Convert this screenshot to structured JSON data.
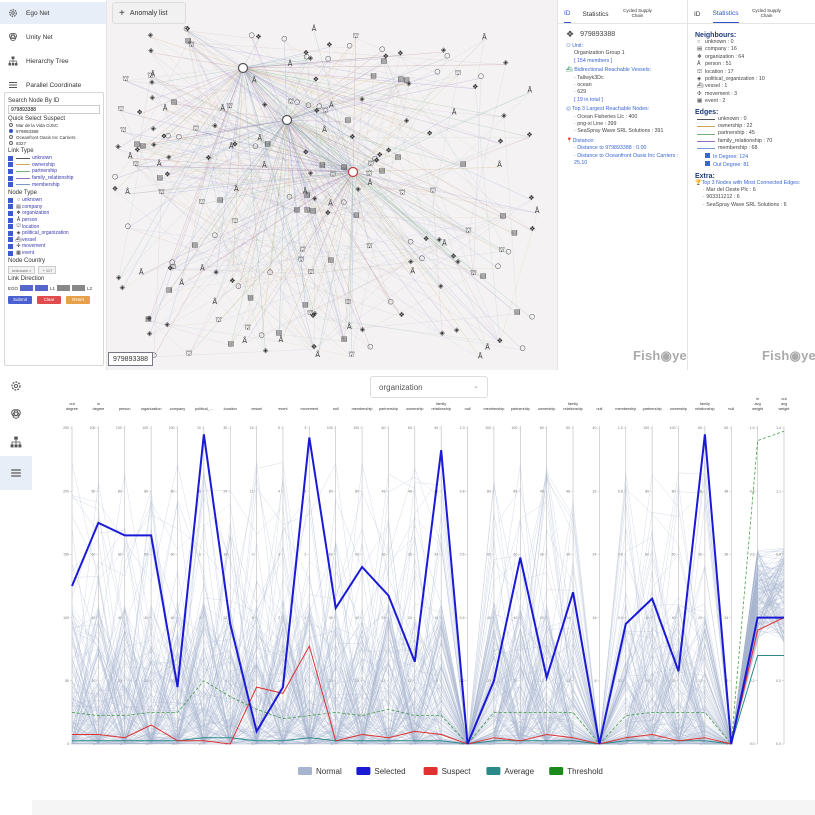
{
  "nav": {
    "items": [
      {
        "label": "Ego Net"
      },
      {
        "label": "Unity Net"
      },
      {
        "label": "Hierarchy Tree"
      },
      {
        "label": "Parallel Coordinate"
      }
    ]
  },
  "search": {
    "title": "Search Node By ID",
    "value": "979893388"
  },
  "suspect": {
    "title": "Quick Select Suspect",
    "options": [
      "Mar de la Vida OJSC",
      "979893388",
      "Oceanfront Oasis Inc Carriers",
      "8327"
    ]
  },
  "link_type": {
    "title": "Link Type",
    "items": [
      "unknown",
      "ownership",
      "partnership",
      "family_relationship",
      "membership"
    ],
    "colors": [
      "#555555",
      "#c9a45a",
      "#7bb07b",
      "#9b6fbf",
      "#7a9acf"
    ]
  },
  "node_type": {
    "title": "Node Type",
    "items": [
      {
        "glyph": "○",
        "label": "unknown"
      },
      {
        "glyph": "▤",
        "label": "company"
      },
      {
        "glyph": "❖",
        "label": "organization"
      },
      {
        "glyph": "Å",
        "label": "person"
      },
      {
        "glyph": "⛫",
        "label": "location"
      },
      {
        "glyph": "◈",
        "label": "political_organization"
      },
      {
        "glyph": "⛴",
        "label": "vessel"
      },
      {
        "glyph": "✣",
        "label": "movement"
      },
      {
        "glyph": "▦",
        "label": "event"
      }
    ]
  },
  "node_country": {
    "title": "Node Country",
    "chips": [
      "unknown ×",
      "+ 117"
    ]
  },
  "link_direction": {
    "title": "Link Direction",
    "ego": "EGO",
    "l1": "L1",
    "l2": "L2"
  },
  "buttons": {
    "submit": "Submit",
    "clear": "Clear",
    "reset": "Reset"
  },
  "graph": {
    "anomaly_label": "Anomaly list",
    "node_badge": "979893388"
  },
  "info": {
    "tabs": [
      "ID",
      "Statistics",
      "Cycled Supply Chain"
    ],
    "id": "979893388",
    "unit_label": "Unit:",
    "unit": "Organization Group 1",
    "members": "[ 154 members ]",
    "vessels_title": "Bidirectional Reachable Vessels:",
    "vessels": [
      "Tallwyk3Dc",
      "ocean",
      "629"
    ],
    "vessels_total": "[ 19 in total ]",
    "top3_title": "Top 3 Largest Reachable Nodes:",
    "top3": [
      "Ocean Fisheries Llc : 400",
      "png-xi Line : 399",
      "SeaSpray Wave SRL Solutions : 391"
    ],
    "distance_title": "Distance:",
    "distances": [
      "Distance to 979893388 : 0.00",
      "Distance to Oceanfront Oasis Inc Carriers : 25.10"
    ],
    "logo": "Fish◉ye"
  },
  "stats": {
    "tabs": [
      "ID",
      "Statistics",
      "Cycled Supply Chain"
    ],
    "neighbours_title": "Neighbours:",
    "neighbours": [
      {
        "glyph": "○",
        "label": "unknown : 0"
      },
      {
        "glyph": "▤",
        "label": "company : 16"
      },
      {
        "glyph": "❖",
        "label": "organization : 64"
      },
      {
        "glyph": "Å",
        "label": "person : 51"
      },
      {
        "glyph": "⛫",
        "label": "location : 17"
      },
      {
        "glyph": "◈",
        "label": "political_organization : 10"
      },
      {
        "glyph": "⛴",
        "label": "vessel : 1"
      },
      {
        "glyph": "✣",
        "label": "movement : 3"
      },
      {
        "glyph": "▦",
        "label": "event : 2"
      }
    ],
    "edges_title": "Edges:",
    "edges": [
      {
        "label": "unknown : 0",
        "color": "#555555"
      },
      {
        "label": "ownership : 22",
        "color": "#c9a45a"
      },
      {
        "label": "partnership : 45",
        "color": "#7bb07b"
      },
      {
        "label": "family_relationship : 70",
        "color": "#9b6fbf"
      },
      {
        "label": "membership : 68",
        "color": "#7a9acf"
      }
    ],
    "in_degree": "In Degree: 124",
    "out_degree": "Out Degree: 81",
    "extra_title": "Extra:",
    "extra_sub": "Top 3 Nodes with Most Connected Edges:",
    "extra_items": [
      "Mar del Oeste Plc : 6",
      "903311212 : 6",
      "SeaSpray Wave SRL Solutions : 6"
    ],
    "logo": "Fish◉ye"
  },
  "parallel": {
    "dropdown": "organization",
    "axes": [
      "out degree",
      "in degree",
      "person",
      "organization",
      "company",
      "political_...",
      "location",
      "vessel",
      "event",
      "movement",
      "null",
      "membership",
      "partnership",
      "ownership",
      "family relationship",
      "null",
      "membership",
      "partnership",
      "ownership",
      "family relationship",
      "null",
      "membership",
      "partnership",
      "ownership",
      "family relationship",
      "null",
      "in avg weight",
      "out avg weight"
    ],
    "legend": [
      {
        "label": "Normal",
        "color": "#a6b4cf"
      },
      {
        "label": "Selected",
        "color": "#1a1ad6"
      },
      {
        "label": "Suspect",
        "color": "#e03030"
      },
      {
        "label": "Average",
        "color": "#2a8a8a"
      },
      {
        "label": "Threshold",
        "color": "#1a8a1a"
      }
    ]
  },
  "chart_data": {
    "type": "parallel-coordinates",
    "axes": [
      "out degree",
      "in degree",
      "person",
      "organization",
      "company",
      "political_...",
      "location",
      "vessel",
      "event",
      "movement",
      "null",
      "membership",
      "partnership",
      "ownership",
      "family relationship",
      "null",
      "membership",
      "partnership",
      "ownership",
      "family relationship",
      "null",
      "membership",
      "partnership",
      "ownership",
      "family relationship",
      "null",
      "in avg weight",
      "out avg weight"
    ],
    "axis_max": [
      250,
      100,
      100,
      100,
      100,
      10,
      30,
      15,
      5,
      3,
      100,
      100,
      60,
      60,
      40,
      1,
      100,
      100,
      60,
      60,
      40,
      1,
      100,
      100,
      60,
      60,
      1,
      1.4
    ],
    "series": [
      {
        "name": "Selected",
        "values": [
          0.5,
          0.7,
          0.66,
          0.66,
          0.18,
          0.98,
          0.38,
          0.04,
          0.18,
          0.97,
          0.43,
          0.56,
          0.47,
          0.26,
          0.93,
          0.0,
          0.2,
          0.59,
          0.21,
          0.48,
          0.0,
          0.38,
          0.46,
          0.23,
          0.98,
          0.0,
          0.4,
          0.4
        ]
      },
      {
        "name": "Suspect",
        "values": [
          0.03,
          0.03,
          0.02,
          0.06,
          0.01,
          0.01,
          0.0,
          0.18,
          0.16,
          0.31,
          0.01,
          0.03,
          0.02,
          0.04,
          0.03,
          0.0,
          0.02,
          0.01,
          0.03,
          0.02,
          0.0,
          0.02,
          0.03,
          0.01,
          0.02,
          0.0,
          0.36,
          0.4
        ]
      },
      {
        "name": "Average",
        "values": [
          0.01,
          0.01,
          0.01,
          0.01,
          0.01,
          0.02,
          0.02,
          0.01,
          0.01,
          0.02,
          0.01,
          0.01,
          0.01,
          0.01,
          0.01,
          0.0,
          0.01,
          0.01,
          0.01,
          0.01,
          0.0,
          0.01,
          0.01,
          0.01,
          0.01,
          0.0,
          0.28,
          0.28
        ]
      },
      {
        "name": "Threshold",
        "values": [
          0.1,
          0.09,
          0.09,
          0.1,
          0.1,
          0.2,
          0.15,
          0.11,
          0.08,
          0.09,
          0.1,
          0.09,
          0.11,
          0.09,
          0.09,
          0.0,
          0.1,
          0.1,
          0.1,
          0.1,
          0.0,
          0.09,
          0.1,
          0.1,
          0.1,
          0.0,
          0.96,
          0.99
        ]
      }
    ]
  }
}
